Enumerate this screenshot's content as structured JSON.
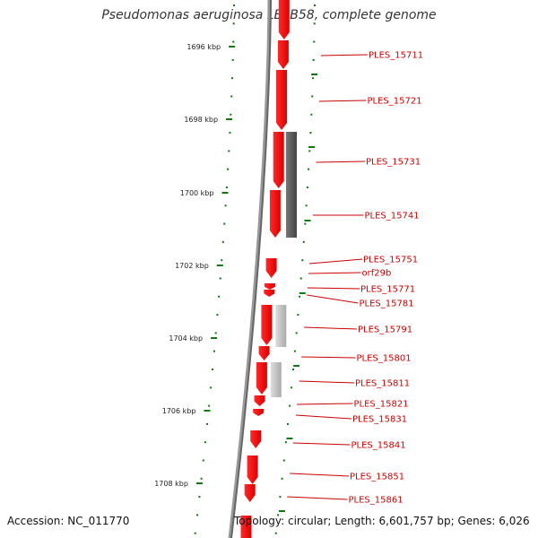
{
  "title": "Pseudomonas aeruginosa LESB58, complete genome",
  "accession": "Accession: NC_011770",
  "topology": "Topology: circular; Length: 6,601,757 bp; Genes: 6,026",
  "colors": {
    "gene_forward": "#ee0000",
    "gene_other": "#555555",
    "gene_light": "#bbbbbb",
    "tick": "#117711",
    "label": "#cc0000"
  },
  "ruler": {
    "ticks": [
      "1696 kbp",
      "1698 kbp",
      "1700 kbp",
      "1702 kbp",
      "1704 kbp",
      "1706 kbp",
      "1708 kbp"
    ]
  },
  "genes": [
    "PLES_15711",
    "PLES_15721",
    "PLES_15731",
    "PLES_15741",
    "PLES_15751",
    "orf29b",
    "PLES_15771",
    "PLES_15781",
    "PLES_15791",
    "PLES_15801",
    "PLES_15811",
    "PLES_15821",
    "PLES_15831",
    "PLES_15841",
    "PLES_15851",
    "PLES_15861"
  ]
}
